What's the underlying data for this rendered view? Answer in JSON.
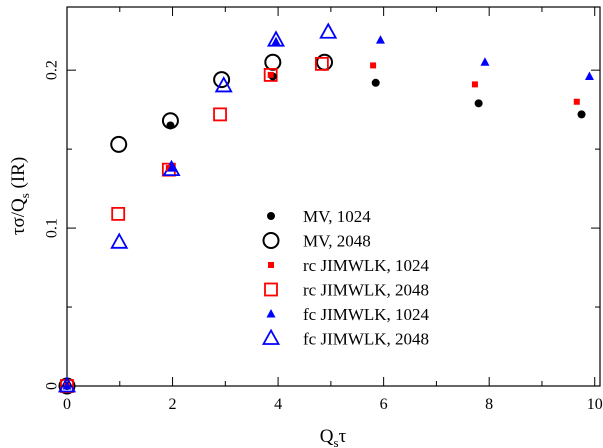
{
  "chart_data": {
    "type": "scatter",
    "title": "",
    "xlabel": "Q",
    "xlabel_sub": "s",
    "xlabel_tail": "τ",
    "ylabel_pre": "τσ/Q",
    "ylabel_sub": "s",
    "ylabel_post": " (IR)",
    "xlim": [
      0,
      10.1
    ],
    "ylim": [
      0,
      0.24
    ],
    "xticks": [
      0,
      2,
      4,
      6,
      8,
      10
    ],
    "xtick_labels": [
      "0",
      "2",
      "4",
      "6",
      "8",
      "10"
    ],
    "yticks": [
      0,
      0.1,
      0.2
    ],
    "ytick_labels": [
      "0",
      "0.1",
      "0.2"
    ],
    "legend_position": "center",
    "series": [
      {
        "name": "MV, 1024",
        "marker": "filled-circle",
        "color": "#000000",
        "points": [
          [
            0,
            0
          ],
          [
            1.96,
            0.165
          ],
          [
            3.9,
            0.196
          ],
          [
            5.85,
            0.192
          ],
          [
            7.8,
            0.179
          ],
          [
            9.75,
            0.172
          ]
        ]
      },
      {
        "name": "MV, 2048",
        "marker": "open-circle",
        "color": "#000000",
        "points": [
          [
            0,
            0
          ],
          [
            0.98,
            0.153
          ],
          [
            1.96,
            0.168
          ],
          [
            2.93,
            0.194
          ],
          [
            3.9,
            0.205
          ],
          [
            4.88,
            0.205
          ]
        ]
      },
      {
        "name": "rc JIMWLK, 1024",
        "marker": "filled-square",
        "color": "#ff0000",
        "points": [
          [
            0,
            0
          ],
          [
            1.93,
            0.138
          ],
          [
            3.86,
            0.197
          ],
          [
            5.8,
            0.203
          ],
          [
            7.73,
            0.191
          ],
          [
            9.66,
            0.18
          ]
        ]
      },
      {
        "name": "rc JIMWLK, 2048",
        "marker": "open-square",
        "color": "#ff0000",
        "points": [
          [
            0,
            0
          ],
          [
            0.97,
            0.109
          ],
          [
            1.93,
            0.137
          ],
          [
            2.9,
            0.172
          ],
          [
            3.86,
            0.197
          ],
          [
            4.83,
            0.204
          ]
        ]
      },
      {
        "name": "fc JIMWLK, 1024",
        "marker": "filled-triangle",
        "color": "#0000ff",
        "points": [
          [
            0,
            0
          ],
          [
            1.98,
            0.138
          ],
          [
            3.96,
            0.218
          ],
          [
            5.94,
            0.219
          ],
          [
            7.92,
            0.205
          ],
          [
            9.9,
            0.196
          ]
        ]
      },
      {
        "name": "fc JIMWLK, 2048",
        "marker": "open-triangle",
        "color": "#0000ff",
        "points": [
          [
            0,
            0
          ],
          [
            0.99,
            0.091
          ],
          [
            1.98,
            0.137
          ],
          [
            2.97,
            0.19
          ],
          [
            3.96,
            0.219
          ],
          [
            4.95,
            0.224
          ]
        ]
      }
    ]
  }
}
